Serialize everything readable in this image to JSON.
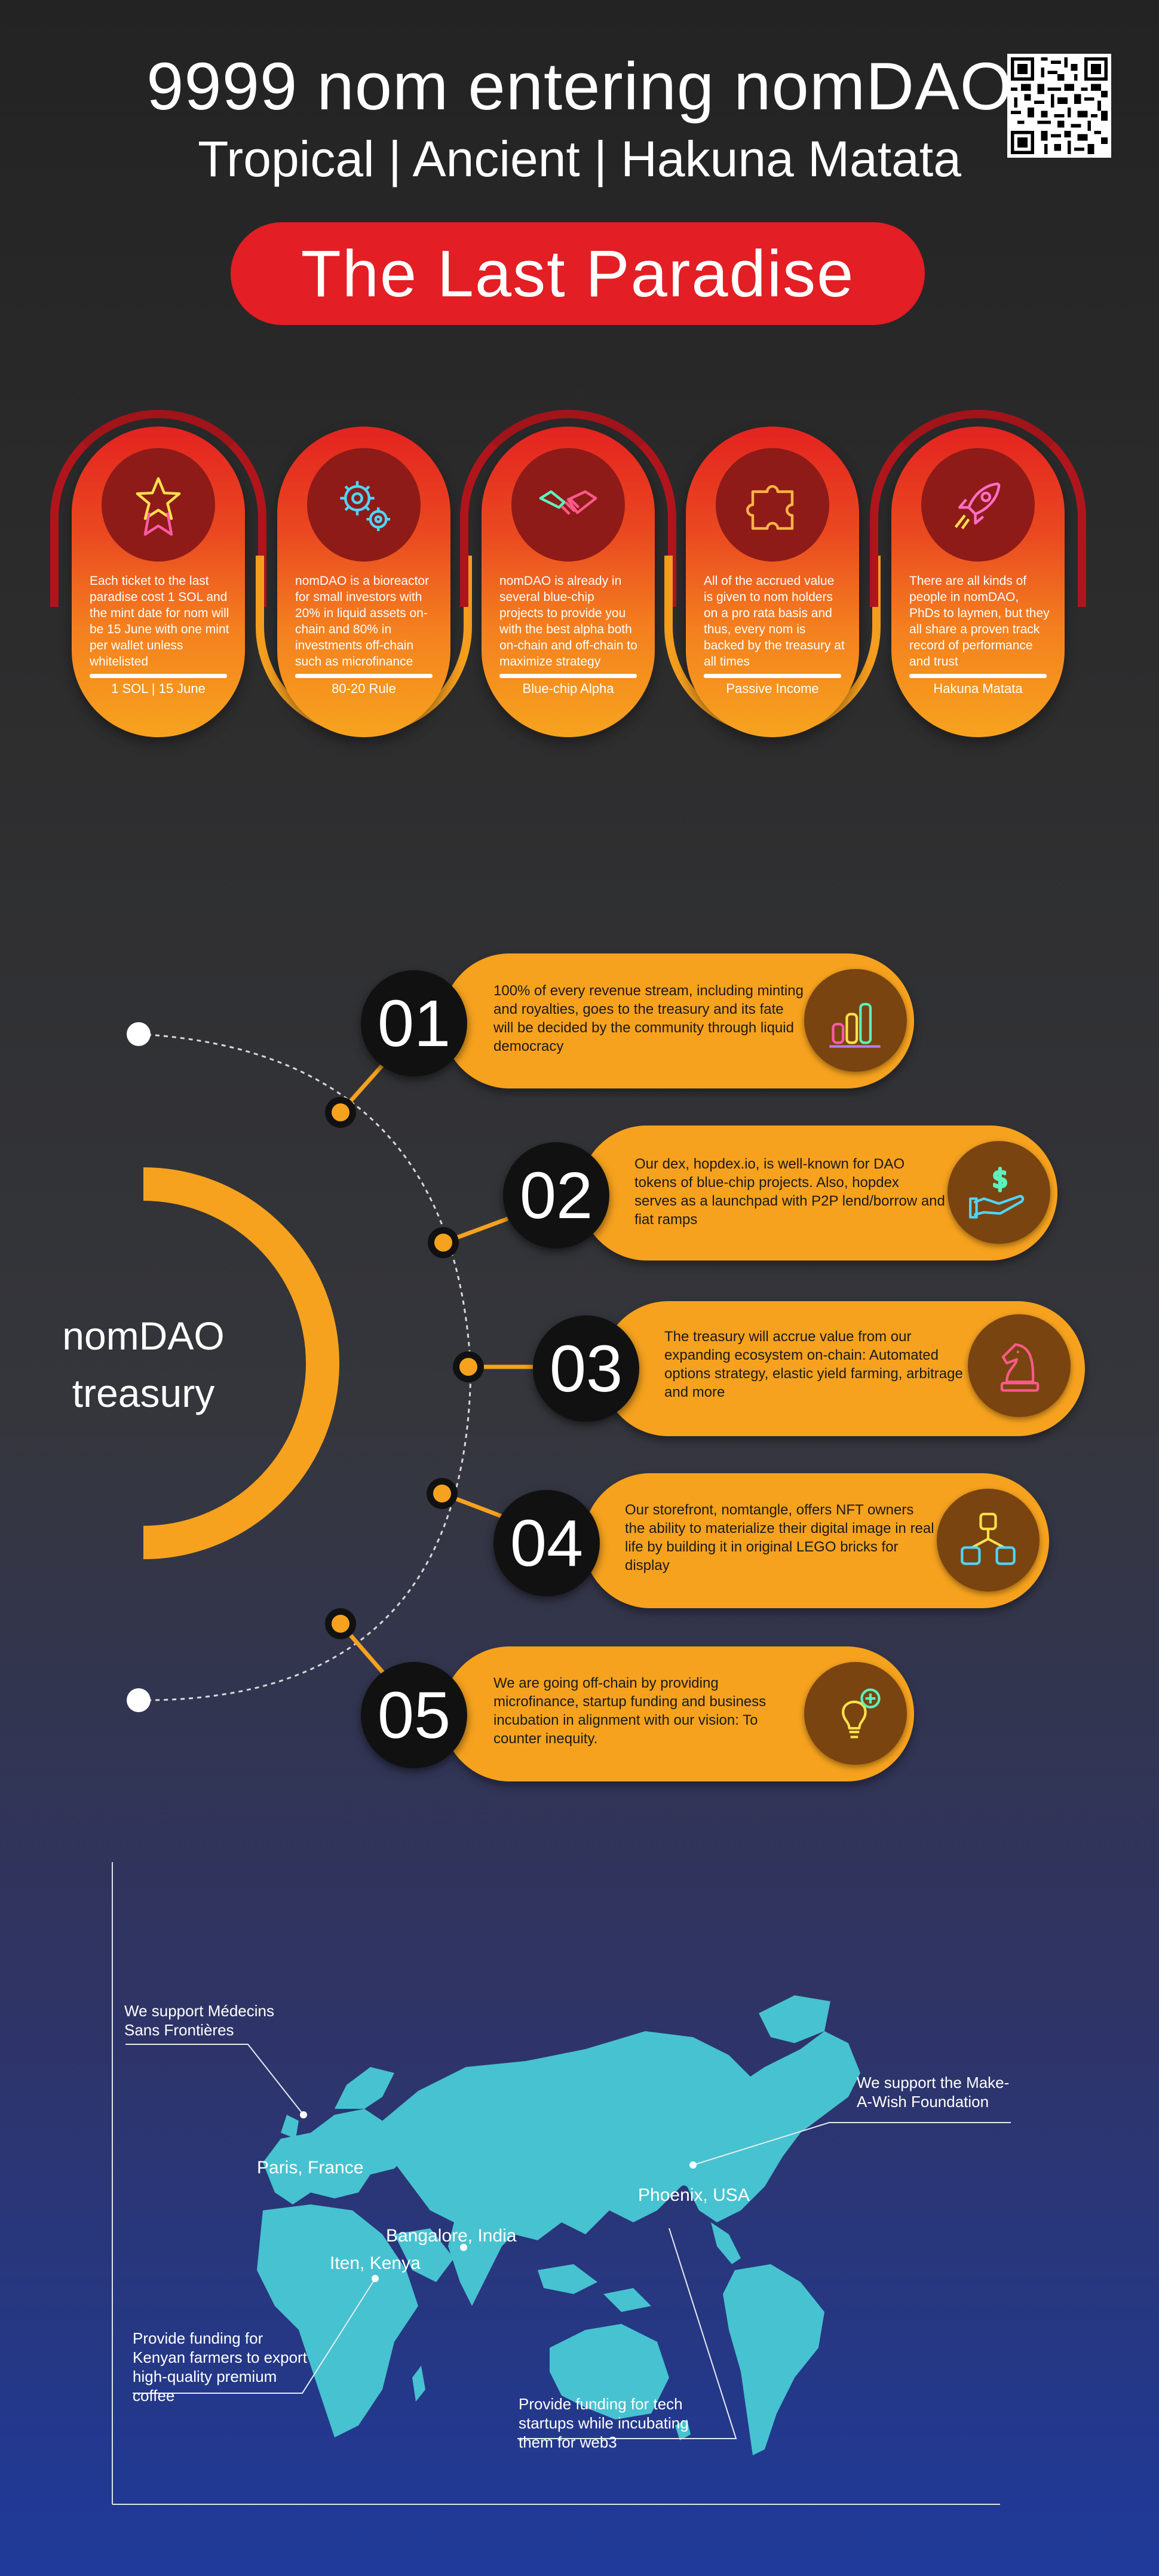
{
  "header": {
    "title": "9999 nom entering nomDAO",
    "subtitle": "Tropical | Ancient | Hakuna Matata",
    "banner": "The Last Paradise"
  },
  "features": [
    {
      "icon": "star-ribbon-icon",
      "text": "Each ticket to the last paradise cost 1 SOL and the mint date for nom will be 15 June with one mint per wallet unless whitelisted",
      "label": "1 SOL | 15 June"
    },
    {
      "icon": "gears-icon",
      "text": "nomDAO is a bioreactor for small investors with 20% in liquid assets on-chain and 80% in investments off-chain such as microfinance",
      "label": "80-20 Rule"
    },
    {
      "icon": "handshake-icon",
      "text": "nomDAO is already in several blue-chip projects to provide you with the best alpha both on-chain and off-chain to maximize strategy",
      "label": "Blue-chip Alpha"
    },
    {
      "icon": "puzzle-icon",
      "text": "All of the accrued value is given to nom holders on a pro rata basis and thus, every nom is backed by the treasury at all times",
      "label": "Passive Income"
    },
    {
      "icon": "rocket-icon",
      "text": "There are all kinds of people in nomDAO, PhDs to laymen, but they all share a proven track record of performance and trust",
      "label": "Hakuna Matata"
    }
  ],
  "treasury": {
    "label_line1": "nomDAO",
    "label_line2": "treasury",
    "steps": [
      {
        "num": "01",
        "icon": "bar-chart-icon",
        "text": "100% of every revenue stream, including minting and royalties, goes to the treasury and its fate will be decided by the community through liquid democracy"
      },
      {
        "num": "02",
        "icon": "dollar-hand-icon",
        "text": "Our dex, hopdex.io, is well-known for DAO tokens of blue-chip projects. Also, hopdex serves as a launchpad with P2P lend/borrow and fiat ramps"
      },
      {
        "num": "03",
        "icon": "chess-knight-icon",
        "text": "The treasury will accrue value from our expanding ecosystem on-chain: Automated options strategy, elastic yield farming, arbitrage and more"
      },
      {
        "num": "04",
        "icon": "hierarchy-icon",
        "text": "Our storefront, nomtangle, offers NFT owners the ability to materialize their digital image in real life by building it in original LEGO bricks for display"
      },
      {
        "num": "05",
        "icon": "lightbulb-plus-icon",
        "text": "We are going off-chain by providing microfinance, startup funding and business incubation in alignment with our vision: To counter inequity."
      }
    ]
  },
  "map": {
    "annotations": [
      {
        "city": "Paris, France",
        "text": "We support Médecins Sans Frontières"
      },
      {
        "city": "Phoenix, USA",
        "text": "We support the Make-A-Wish Foundation"
      },
      {
        "city": "Iten, Kenya",
        "text": "Provide funding for Kenyan farmers to export high-quality premium coffee"
      },
      {
        "city": "Bangalore, India",
        "text": "Provide funding for tech startups while incubating them for web3"
      }
    ]
  },
  "colors": {
    "red": "#e31e24",
    "orange": "#f6a21e",
    "map": "#47c2d0"
  }
}
